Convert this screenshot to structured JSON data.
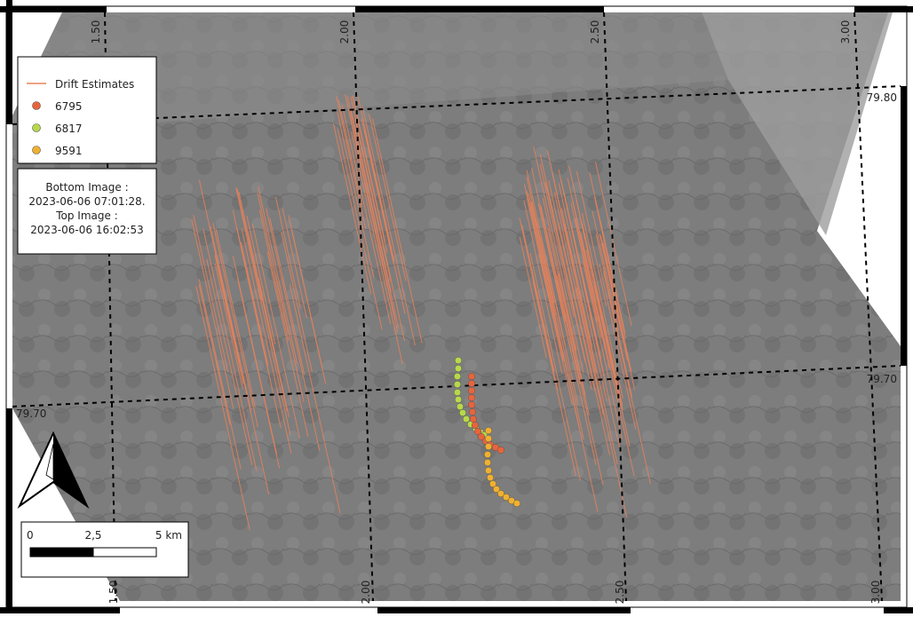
{
  "legend": {
    "title": "Drift Estimates",
    "items": [
      "6795",
      "6817",
      "9591"
    ]
  },
  "info": {
    "lines": [
      "Bottom Image :",
      "2023-06-06 07:01:28.",
      "Top Image :",
      "2023-06-06 16:02:53"
    ]
  },
  "grid_labels": {
    "top": [
      "1.50",
      "2.00",
      "2.50",
      "3.00"
    ],
    "bottom": [
      "1.50",
      "2.00",
      "2.50",
      "3.00"
    ],
    "right": [
      "79.80",
      "79.70"
    ],
    "left": [
      "79.70"
    ]
  },
  "scale_bar": {
    "labels": [
      "0",
      "2,5",
      "5 km"
    ]
  }
}
